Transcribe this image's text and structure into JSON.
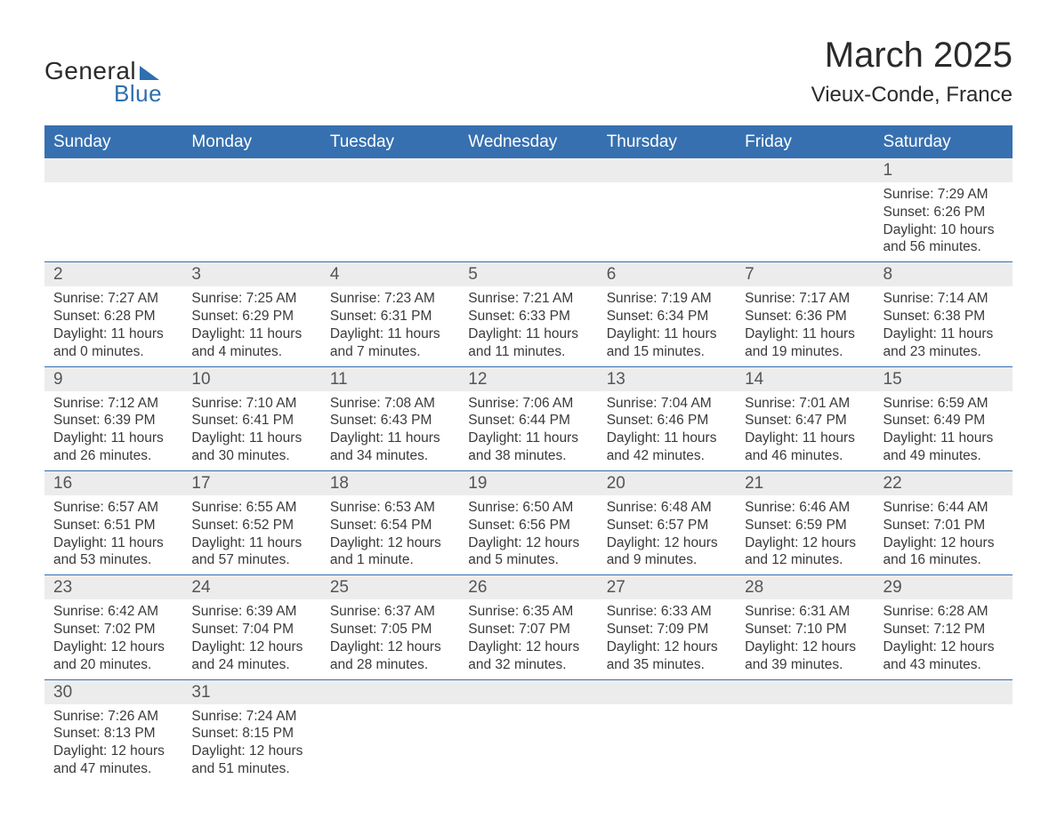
{
  "logo": {
    "word1": "General",
    "word2": "Blue"
  },
  "title": "March 2025",
  "location": "Vieux-Conde, France",
  "colors": {
    "header_bg": "#3670b0",
    "header_text": "#ffffff",
    "row_divider": "#3670b0",
    "daynum_bg": "#ececec",
    "body_text": "#3a3a3a",
    "page_bg": "#ffffff",
    "logo_accent": "#2f6eb0"
  },
  "typography": {
    "title_fontsize": 40,
    "location_fontsize": 24,
    "header_fontsize": 19,
    "daynum_fontsize": 19,
    "body_fontsize": 15.5
  },
  "dayHeaders": [
    "Sunday",
    "Monday",
    "Tuesday",
    "Wednesday",
    "Thursday",
    "Friday",
    "Saturday"
  ],
  "weeks": [
    [
      {
        "empty": true
      },
      {
        "empty": true
      },
      {
        "empty": true
      },
      {
        "empty": true
      },
      {
        "empty": true
      },
      {
        "empty": true
      },
      {
        "day": "1",
        "sunrise": "Sunrise: 7:29 AM",
        "sunset": "Sunset: 6:26 PM",
        "daylight": "Daylight: 10 hours and 56 minutes."
      }
    ],
    [
      {
        "day": "2",
        "sunrise": "Sunrise: 7:27 AM",
        "sunset": "Sunset: 6:28 PM",
        "daylight": "Daylight: 11 hours and 0 minutes."
      },
      {
        "day": "3",
        "sunrise": "Sunrise: 7:25 AM",
        "sunset": "Sunset: 6:29 PM",
        "daylight": "Daylight: 11 hours and 4 minutes."
      },
      {
        "day": "4",
        "sunrise": "Sunrise: 7:23 AM",
        "sunset": "Sunset: 6:31 PM",
        "daylight": "Daylight: 11 hours and 7 minutes."
      },
      {
        "day": "5",
        "sunrise": "Sunrise: 7:21 AM",
        "sunset": "Sunset: 6:33 PM",
        "daylight": "Daylight: 11 hours and 11 minutes."
      },
      {
        "day": "6",
        "sunrise": "Sunrise: 7:19 AM",
        "sunset": "Sunset: 6:34 PM",
        "daylight": "Daylight: 11 hours and 15 minutes."
      },
      {
        "day": "7",
        "sunrise": "Sunrise: 7:17 AM",
        "sunset": "Sunset: 6:36 PM",
        "daylight": "Daylight: 11 hours and 19 minutes."
      },
      {
        "day": "8",
        "sunrise": "Sunrise: 7:14 AM",
        "sunset": "Sunset: 6:38 PM",
        "daylight": "Daylight: 11 hours and 23 minutes."
      }
    ],
    [
      {
        "day": "9",
        "sunrise": "Sunrise: 7:12 AM",
        "sunset": "Sunset: 6:39 PM",
        "daylight": "Daylight: 11 hours and 26 minutes."
      },
      {
        "day": "10",
        "sunrise": "Sunrise: 7:10 AM",
        "sunset": "Sunset: 6:41 PM",
        "daylight": "Daylight: 11 hours and 30 minutes."
      },
      {
        "day": "11",
        "sunrise": "Sunrise: 7:08 AM",
        "sunset": "Sunset: 6:43 PM",
        "daylight": "Daylight: 11 hours and 34 minutes."
      },
      {
        "day": "12",
        "sunrise": "Sunrise: 7:06 AM",
        "sunset": "Sunset: 6:44 PM",
        "daylight": "Daylight: 11 hours and 38 minutes."
      },
      {
        "day": "13",
        "sunrise": "Sunrise: 7:04 AM",
        "sunset": "Sunset: 6:46 PM",
        "daylight": "Daylight: 11 hours and 42 minutes."
      },
      {
        "day": "14",
        "sunrise": "Sunrise: 7:01 AM",
        "sunset": "Sunset: 6:47 PM",
        "daylight": "Daylight: 11 hours and 46 minutes."
      },
      {
        "day": "15",
        "sunrise": "Sunrise: 6:59 AM",
        "sunset": "Sunset: 6:49 PM",
        "daylight": "Daylight: 11 hours and 49 minutes."
      }
    ],
    [
      {
        "day": "16",
        "sunrise": "Sunrise: 6:57 AM",
        "sunset": "Sunset: 6:51 PM",
        "daylight": "Daylight: 11 hours and 53 minutes."
      },
      {
        "day": "17",
        "sunrise": "Sunrise: 6:55 AM",
        "sunset": "Sunset: 6:52 PM",
        "daylight": "Daylight: 11 hours and 57 minutes."
      },
      {
        "day": "18",
        "sunrise": "Sunrise: 6:53 AM",
        "sunset": "Sunset: 6:54 PM",
        "daylight": "Daylight: 12 hours and 1 minute."
      },
      {
        "day": "19",
        "sunrise": "Sunrise: 6:50 AM",
        "sunset": "Sunset: 6:56 PM",
        "daylight": "Daylight: 12 hours and 5 minutes."
      },
      {
        "day": "20",
        "sunrise": "Sunrise: 6:48 AM",
        "sunset": "Sunset: 6:57 PM",
        "daylight": "Daylight: 12 hours and 9 minutes."
      },
      {
        "day": "21",
        "sunrise": "Sunrise: 6:46 AM",
        "sunset": "Sunset: 6:59 PM",
        "daylight": "Daylight: 12 hours and 12 minutes."
      },
      {
        "day": "22",
        "sunrise": "Sunrise: 6:44 AM",
        "sunset": "Sunset: 7:01 PM",
        "daylight": "Daylight: 12 hours and 16 minutes."
      }
    ],
    [
      {
        "day": "23",
        "sunrise": "Sunrise: 6:42 AM",
        "sunset": "Sunset: 7:02 PM",
        "daylight": "Daylight: 12 hours and 20 minutes."
      },
      {
        "day": "24",
        "sunrise": "Sunrise: 6:39 AM",
        "sunset": "Sunset: 7:04 PM",
        "daylight": "Daylight: 12 hours and 24 minutes."
      },
      {
        "day": "25",
        "sunrise": "Sunrise: 6:37 AM",
        "sunset": "Sunset: 7:05 PM",
        "daylight": "Daylight: 12 hours and 28 minutes."
      },
      {
        "day": "26",
        "sunrise": "Sunrise: 6:35 AM",
        "sunset": "Sunset: 7:07 PM",
        "daylight": "Daylight: 12 hours and 32 minutes."
      },
      {
        "day": "27",
        "sunrise": "Sunrise: 6:33 AM",
        "sunset": "Sunset: 7:09 PM",
        "daylight": "Daylight: 12 hours and 35 minutes."
      },
      {
        "day": "28",
        "sunrise": "Sunrise: 6:31 AM",
        "sunset": "Sunset: 7:10 PM",
        "daylight": "Daylight: 12 hours and 39 minutes."
      },
      {
        "day": "29",
        "sunrise": "Sunrise: 6:28 AM",
        "sunset": "Sunset: 7:12 PM",
        "daylight": "Daylight: 12 hours and 43 minutes."
      }
    ],
    [
      {
        "day": "30",
        "sunrise": "Sunrise: 7:26 AM",
        "sunset": "Sunset: 8:13 PM",
        "daylight": "Daylight: 12 hours and 47 minutes."
      },
      {
        "day": "31",
        "sunrise": "Sunrise: 7:24 AM",
        "sunset": "Sunset: 8:15 PM",
        "daylight": "Daylight: 12 hours and 51 minutes."
      },
      {
        "empty": true
      },
      {
        "empty": true
      },
      {
        "empty": true
      },
      {
        "empty": true
      },
      {
        "empty": true
      }
    ]
  ]
}
